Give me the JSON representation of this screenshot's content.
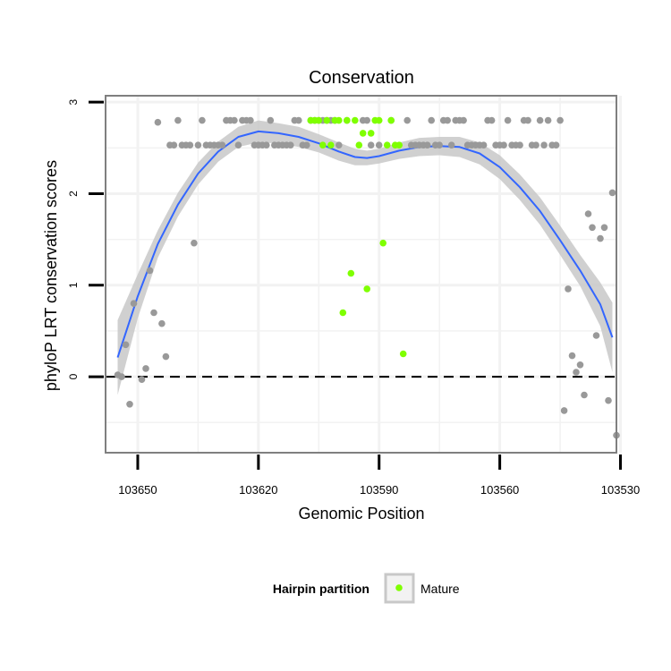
{
  "chart_data": {
    "type": "scatter",
    "title": "Conservation",
    "xlabel": "Genomic Position",
    "ylabel": "phyloP LRT conservation scores",
    "x_reversed": true,
    "xlim": [
      103531,
      103658
    ],
    "ylim": [
      -0.83,
      3.07
    ],
    "x_ticks": [
      103650,
      103620,
      103590,
      103560,
      103530
    ],
    "y_ticks": [
      0,
      1,
      2,
      3
    ],
    "grid": true,
    "reference_line": {
      "y": 0,
      "style": "dashed"
    },
    "colors": {
      "other": "#999999",
      "mature": "#7fff00",
      "smooth": "#3366ff",
      "ribbon": "#c8c8c8",
      "panel_border": "#7f7f7f",
      "grid": "#f2f2f2"
    },
    "legend": {
      "title": "Hairpin partition",
      "position": "bottom",
      "entries": [
        "Mature"
      ]
    },
    "series": [
      {
        "key": "other",
        "points": [
          [
            103655,
            0.02
          ],
          [
            103654,
            0.0
          ],
          [
            103653,
            0.35
          ],
          [
            103652,
            -0.3
          ],
          [
            103651,
            0.8
          ],
          [
            103649,
            -0.03
          ],
          [
            103648,
            0.09
          ],
          [
            103647,
            1.16
          ],
          [
            103646,
            0.7
          ],
          [
            103645,
            2.78
          ],
          [
            103644,
            0.58
          ],
          [
            103643,
            0.22
          ],
          [
            103642,
            2.53
          ],
          [
            103641,
            2.53
          ],
          [
            103640,
            2.8
          ],
          [
            103639,
            2.53
          ],
          [
            103638,
            2.53
          ],
          [
            103637,
            2.53
          ],
          [
            103636,
            1.46
          ],
          [
            103635,
            2.53
          ],
          [
            103634,
            2.8
          ],
          [
            103633,
            2.53
          ],
          [
            103632,
            2.53
          ],
          [
            103631,
            2.53
          ],
          [
            103630,
            2.53
          ],
          [
            103629,
            2.53
          ],
          [
            103628,
            2.8
          ],
          [
            103627,
            2.8
          ],
          [
            103626,
            2.8
          ],
          [
            103625,
            2.53
          ],
          [
            103624,
            2.8
          ],
          [
            103623,
            2.8
          ],
          [
            103622,
            2.8
          ],
          [
            103621,
            2.53
          ],
          [
            103620,
            2.53
          ],
          [
            103619,
            2.53
          ],
          [
            103618,
            2.53
          ],
          [
            103617,
            2.8
          ],
          [
            103616,
            2.53
          ],
          [
            103615,
            2.53
          ],
          [
            103614,
            2.53
          ],
          [
            103613,
            2.53
          ],
          [
            103612,
            2.53
          ],
          [
            103611,
            2.8
          ],
          [
            103610,
            2.8
          ],
          [
            103609,
            2.53
          ],
          [
            103608,
            2.53
          ],
          [
            103607,
            2.8
          ],
          [
            103606,
            2.8
          ],
          [
            103605,
            2.8
          ],
          [
            103604,
            2.8
          ],
          [
            103603,
            2.8
          ],
          [
            103602,
            2.8
          ],
          [
            103601,
            2.8
          ],
          [
            103600,
            2.53
          ],
          [
            103598,
            2.8
          ],
          [
            103594,
            2.8
          ],
          [
            103593,
            2.8
          ],
          [
            103592,
            2.53
          ],
          [
            103590,
            2.53
          ],
          [
            103587,
            2.8
          ],
          [
            103583,
            2.8
          ],
          [
            103582,
            2.53
          ],
          [
            103581,
            2.53
          ],
          [
            103580,
            2.53
          ],
          [
            103579,
            2.53
          ],
          [
            103578,
            2.53
          ],
          [
            103577,
            2.8
          ],
          [
            103576,
            2.53
          ],
          [
            103575,
            2.53
          ],
          [
            103574,
            2.8
          ],
          [
            103573,
            2.8
          ],
          [
            103572,
            2.53
          ],
          [
            103571,
            2.8
          ],
          [
            103570,
            2.8
          ],
          [
            103569,
            2.8
          ],
          [
            103568,
            2.53
          ],
          [
            103567,
            2.53
          ],
          [
            103566,
            2.53
          ],
          [
            103565,
            2.53
          ],
          [
            103564,
            2.53
          ],
          [
            103563,
            2.8
          ],
          [
            103562,
            2.8
          ],
          [
            103561,
            2.53
          ],
          [
            103560,
            2.53
          ],
          [
            103559,
            2.53
          ],
          [
            103558,
            2.8
          ],
          [
            103557,
            2.53
          ],
          [
            103556,
            2.53
          ],
          [
            103555,
            2.53
          ],
          [
            103554,
            2.8
          ],
          [
            103553,
            2.8
          ],
          [
            103552,
            2.53
          ],
          [
            103551,
            2.53
          ],
          [
            103550,
            2.8
          ],
          [
            103549,
            2.53
          ],
          [
            103548,
            2.8
          ],
          [
            103547,
            2.53
          ],
          [
            103546,
            2.53
          ],
          [
            103545,
            2.8
          ],
          [
            103544,
            -0.37
          ],
          [
            103543,
            0.96
          ],
          [
            103542,
            0.23
          ],
          [
            103541,
            0.05
          ],
          [
            103540,
            0.13
          ],
          [
            103539,
            -0.2
          ],
          [
            103538,
            1.78
          ],
          [
            103537,
            1.63
          ],
          [
            103536,
            0.45
          ],
          [
            103535,
            1.51
          ],
          [
            103534,
            1.63
          ],
          [
            103533,
            -0.26
          ],
          [
            103532,
            2.01
          ],
          [
            103531,
            -0.64
          ]
        ]
      },
      {
        "key": "mature",
        "name": "Mature",
        "points": [
          [
            103607,
            2.8
          ],
          [
            103606,
            2.8
          ],
          [
            103605,
            2.8
          ],
          [
            103604,
            2.53
          ],
          [
            103603,
            2.8
          ],
          [
            103602,
            2.53
          ],
          [
            103601,
            2.8
          ],
          [
            103600,
            2.8
          ],
          [
            103599,
            0.7
          ],
          [
            103598,
            2.8
          ],
          [
            103597,
            1.13
          ],
          [
            103596,
            2.8
          ],
          [
            103595,
            2.53
          ],
          [
            103594,
            2.66
          ],
          [
            103593,
            0.96
          ],
          [
            103592,
            2.66
          ],
          [
            103591,
            2.8
          ],
          [
            103590,
            2.8
          ],
          [
            103589,
            1.46
          ],
          [
            103588,
            2.53
          ],
          [
            103587,
            2.8
          ],
          [
            103586,
            2.53
          ],
          [
            103585,
            2.53
          ],
          [
            103584,
            0.25
          ]
        ]
      }
    ],
    "smooth_line": [
      [
        103655,
        0.21
      ],
      [
        103650,
        0.88
      ],
      [
        103645,
        1.45
      ],
      [
        103640,
        1.88
      ],
      [
        103635,
        2.22
      ],
      [
        103630,
        2.46
      ],
      [
        103625,
        2.62
      ],
      [
        103620,
        2.68
      ],
      [
        103615,
        2.66
      ],
      [
        103610,
        2.62
      ],
      [
        103605,
        2.55
      ],
      [
        103600,
        2.46
      ],
      [
        103596,
        2.4
      ],
      [
        103593,
        2.39
      ],
      [
        103590,
        2.41
      ],
      [
        103585,
        2.47
      ],
      [
        103580,
        2.51
      ],
      [
        103575,
        2.52
      ],
      [
        103570,
        2.51
      ],
      [
        103565,
        2.44
      ],
      [
        103560,
        2.29
      ],
      [
        103555,
        2.07
      ],
      [
        103550,
        1.81
      ],
      [
        103545,
        1.49
      ],
      [
        103540,
        1.16
      ],
      [
        103535,
        0.79
      ],
      [
        103532,
        0.43
      ]
    ],
    "ribbon": [
      [
        103655,
        -0.2,
        0.62
      ],
      [
        103650,
        0.64,
        1.12
      ],
      [
        103645,
        1.3,
        1.6
      ],
      [
        103640,
        1.75,
        2.01
      ],
      [
        103635,
        2.1,
        2.34
      ],
      [
        103630,
        2.35,
        2.57
      ],
      [
        103625,
        2.51,
        2.73
      ],
      [
        103620,
        2.56,
        2.8
      ],
      [
        103615,
        2.55,
        2.77
      ],
      [
        103610,
        2.51,
        2.73
      ],
      [
        103605,
        2.45,
        2.65
      ],
      [
        103600,
        2.36,
        2.56
      ],
      [
        103596,
        2.31,
        2.49
      ],
      [
        103593,
        2.31,
        2.47
      ],
      [
        103590,
        2.33,
        2.49
      ],
      [
        103585,
        2.38,
        2.56
      ],
      [
        103580,
        2.41,
        2.61
      ],
      [
        103575,
        2.42,
        2.62
      ],
      [
        103570,
        2.4,
        2.62
      ],
      [
        103565,
        2.32,
        2.56
      ],
      [
        103560,
        2.16,
        2.42
      ],
      [
        103555,
        1.93,
        2.21
      ],
      [
        103550,
        1.66,
        1.96
      ],
      [
        103545,
        1.33,
        1.65
      ],
      [
        103540,
        0.99,
        1.33
      ],
      [
        103535,
        0.55,
        1.03
      ],
      [
        103532,
        0.05,
        0.81
      ]
    ]
  }
}
